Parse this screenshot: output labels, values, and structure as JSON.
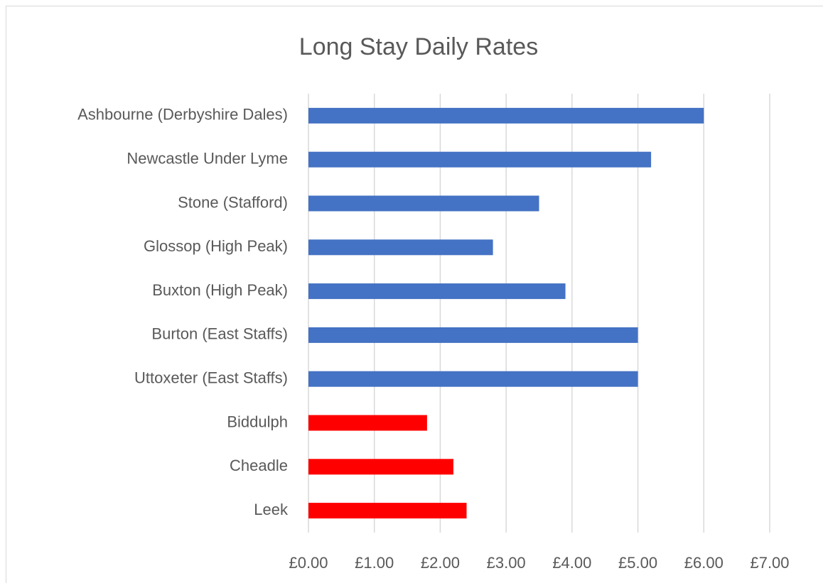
{
  "chart_data": {
    "type": "barh",
    "title": "Long Stay Daily Rates",
    "categories": [
      "Ashbourne (Derbyshire Dales)",
      "Newcastle Under Lyme",
      "Stone (Stafford)",
      "Glossop (High Peak)",
      "Buxton (High Peak)",
      "Burton (East Staffs)",
      "Uttoxeter (East Staffs)",
      "Biddulph",
      "Cheadle",
      "Leek"
    ],
    "values": [
      6.0,
      5.2,
      3.5,
      2.8,
      3.9,
      5.0,
      5.0,
      1.8,
      2.2,
      2.4
    ],
    "colors": [
      "#4472c4",
      "#4472c4",
      "#4472c4",
      "#4472c4",
      "#4472c4",
      "#4472c4",
      "#4472c4",
      "#ff0000",
      "#ff0000",
      "#ff0000"
    ],
    "xlim": [
      0,
      7
    ],
    "xticks": [
      {
        "value": 0,
        "label": "£0.00"
      },
      {
        "value": 1,
        "label": "£1.00"
      },
      {
        "value": 2,
        "label": "£2.00"
      },
      {
        "value": 3,
        "label": "£3.00"
      },
      {
        "value": 4,
        "label": "£4.00"
      },
      {
        "value": 5,
        "label": "£5.00"
      },
      {
        "value": 6,
        "label": "£6.00"
      },
      {
        "value": 7,
        "label": "£7.00"
      }
    ],
    "grid": true
  }
}
